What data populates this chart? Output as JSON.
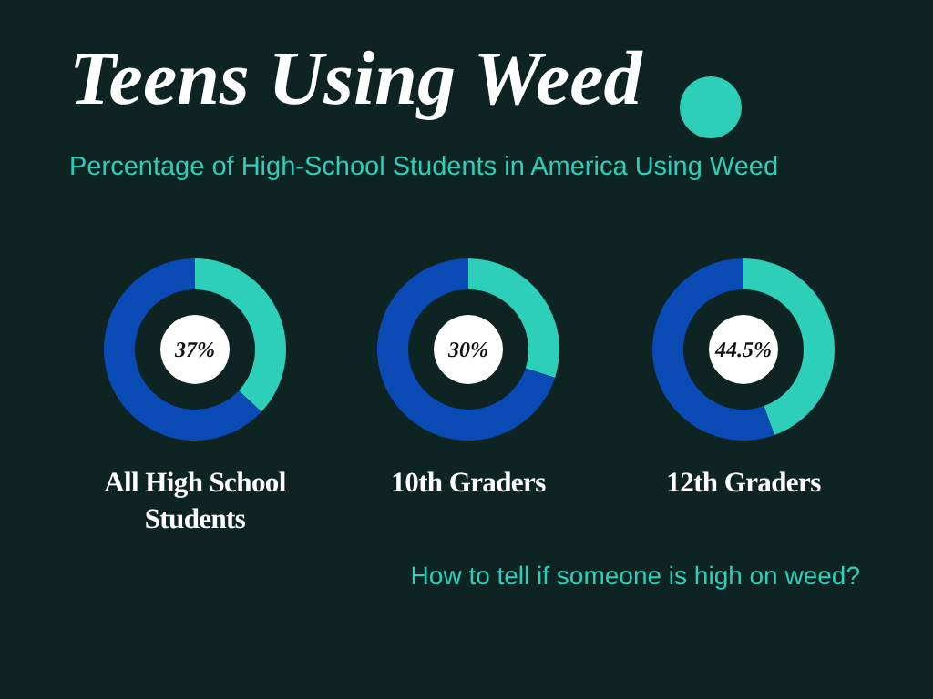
{
  "chart_data": [
    {
      "type": "other",
      "title": "Teens Using Weed",
      "subtitle": "Percentage of High-School Students in America Using Weed",
      "annotations": [
        "How to tell if someone is high on weed?"
      ]
    },
    {
      "type": "donut",
      "title": "All High School Students",
      "categories": [
        null,
        null
      ],
      "values": [
        37,
        63
      ],
      "colors": [
        "#2ecfb8",
        "#0a4ab4"
      ],
      "annotations": [
        "37%"
      ]
    },
    {
      "type": "donut",
      "title": "10th Graders",
      "categories": [
        null,
        null
      ],
      "values": [
        30,
        70
      ],
      "colors": [
        "#2ecfb8",
        "#0a4ab4"
      ],
      "annotations": [
        "30%"
      ]
    },
    {
      "type": "donut",
      "title": "12th Graders",
      "categories": [
        null,
        null
      ],
      "values": [
        44.5,
        55.5
      ],
      "colors": [
        "#2ecfb8",
        "#0a4ab4"
      ],
      "annotations": [
        "44.5%"
      ]
    }
  ]
}
